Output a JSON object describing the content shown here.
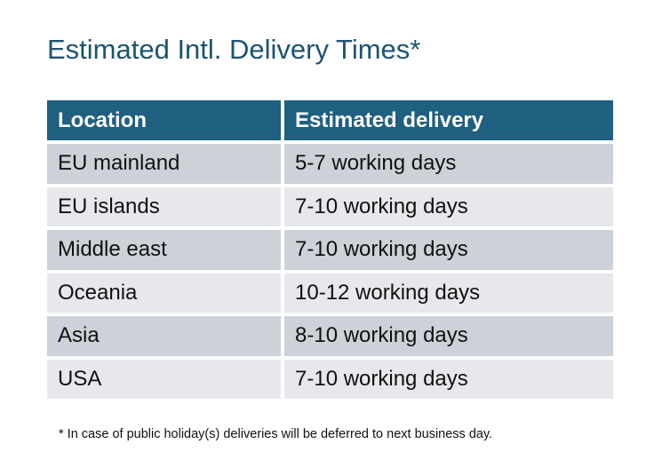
{
  "title": "Estimated Intl. Delivery Times*",
  "table": {
    "headers": [
      "Location",
      "Estimated delivery"
    ],
    "rows": [
      [
        "EU mainland",
        "5-7 working days"
      ],
      [
        "EU islands",
        "7-10 working days"
      ],
      [
        "Middle east",
        "7-10 working days"
      ],
      [
        "Oceania",
        "10-12 working days"
      ],
      [
        "Asia",
        "8-10 working days"
      ],
      [
        "USA",
        "7-10 working days"
      ]
    ]
  },
  "footnote": "* In case of public holiday(s) deliveries will be deferred to next business day.",
  "colors": {
    "header": "#1f5f80",
    "title": "#1b5472",
    "row_dark": "#cdd1d8",
    "row_light": "#e6e8eb"
  }
}
